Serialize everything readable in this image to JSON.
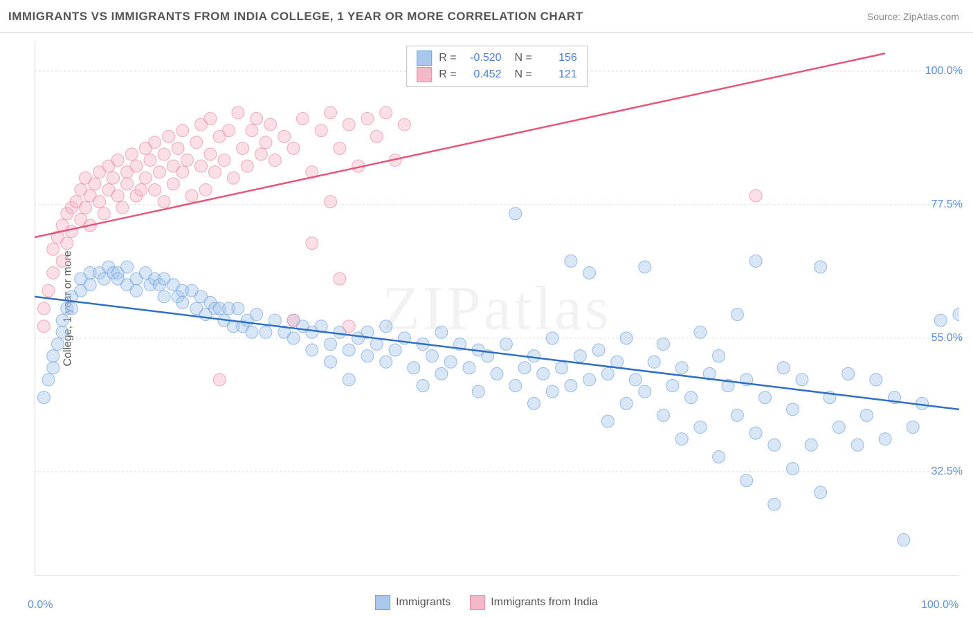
{
  "title": "IMMIGRANTS VS IMMIGRANTS FROM INDIA COLLEGE, 1 YEAR OR MORE CORRELATION CHART",
  "source": "Source: ZipAtlas.com",
  "watermark": "ZIPatlas",
  "y_axis_label": "College, 1 year or more",
  "chart": {
    "type": "scatter",
    "background_color": "#ffffff",
    "grid_color": "#dcdcdc",
    "axis_color": "#b0b0b0",
    "xlim": [
      0,
      100
    ],
    "ylim": [
      15,
      105
    ],
    "x_ticks": [
      0,
      10,
      20,
      30,
      40,
      50,
      60,
      70,
      80,
      90,
      100
    ],
    "x_tick_labels": {
      "0": "0.0%",
      "100": "100.0%"
    },
    "y_ticks": [
      32.5,
      55.0,
      77.5,
      100.0
    ],
    "y_tick_labels": [
      "32.5%",
      "55.0%",
      "77.5%",
      "100.0%"
    ],
    "marker_radius": 9,
    "marker_opacity": 0.45,
    "line_width": 2.5,
    "series": [
      {
        "name": "Immigrants",
        "color_fill": "#a9c8ec",
        "color_stroke": "#6fa3dd",
        "line_color": "#2f6fc4",
        "R": "-0.520",
        "N": "156",
        "trend": {
          "x1": 0,
          "y1": 62,
          "x2": 100,
          "y2": 43
        },
        "points": [
          [
            1,
            45
          ],
          [
            1.5,
            48
          ],
          [
            2,
            50
          ],
          [
            2,
            52
          ],
          [
            2.5,
            54
          ],
          [
            3,
            56
          ],
          [
            3,
            58
          ],
          [
            3.5,
            60
          ],
          [
            4,
            62
          ],
          [
            4,
            60
          ],
          [
            5,
            63
          ],
          [
            5,
            65
          ],
          [
            6,
            64
          ],
          [
            6,
            66
          ],
          [
            7,
            66
          ],
          [
            7.5,
            65
          ],
          [
            8,
            67
          ],
          [
            8.5,
            66
          ],
          [
            9,
            66
          ],
          [
            9,
            65
          ],
          [
            10,
            67
          ],
          [
            10,
            64
          ],
          [
            11,
            65
          ],
          [
            11,
            63
          ],
          [
            12,
            66
          ],
          [
            12.5,
            64
          ],
          [
            13,
            65
          ],
          [
            13.5,
            64
          ],
          [
            14,
            65
          ],
          [
            14,
            62
          ],
          [
            15,
            64
          ],
          [
            15.5,
            62
          ],
          [
            16,
            63
          ],
          [
            16,
            61
          ],
          [
            17,
            63
          ],
          [
            17.5,
            60
          ],
          [
            18,
            62
          ],
          [
            18.5,
            59
          ],
          [
            19,
            61
          ],
          [
            19.5,
            60
          ],
          [
            20,
            60
          ],
          [
            20.5,
            58
          ],
          [
            21,
            60
          ],
          [
            21.5,
            57
          ],
          [
            22,
            60
          ],
          [
            22.5,
            57
          ],
          [
            23,
            58
          ],
          [
            23.5,
            56
          ],
          [
            24,
            59
          ],
          [
            25,
            56
          ],
          [
            26,
            58
          ],
          [
            27,
            56
          ],
          [
            28,
            58
          ],
          [
            28,
            55
          ],
          [
            29,
            57
          ],
          [
            30,
            56
          ],
          [
            30,
            53
          ],
          [
            31,
            57
          ],
          [
            32,
            54
          ],
          [
            32,
            51
          ],
          [
            33,
            56
          ],
          [
            34,
            53
          ],
          [
            34,
            48
          ],
          [
            35,
            55
          ],
          [
            36,
            56
          ],
          [
            36,
            52
          ],
          [
            37,
            54
          ],
          [
            38,
            51
          ],
          [
            38,
            57
          ],
          [
            39,
            53
          ],
          [
            40,
            55
          ],
          [
            41,
            50
          ],
          [
            42,
            54
          ],
          [
            42,
            47
          ],
          [
            43,
            52
          ],
          [
            44,
            56
          ],
          [
            44,
            49
          ],
          [
            45,
            51
          ],
          [
            46,
            54
          ],
          [
            47,
            50
          ],
          [
            48,
            53
          ],
          [
            48,
            46
          ],
          [
            49,
            52
          ],
          [
            50,
            49
          ],
          [
            51,
            54
          ],
          [
            52,
            47
          ],
          [
            52,
            76
          ],
          [
            53,
            50
          ],
          [
            54,
            52
          ],
          [
            54,
            44
          ],
          [
            55,
            49
          ],
          [
            56,
            46
          ],
          [
            56,
            55
          ],
          [
            57,
            50
          ],
          [
            58,
            68
          ],
          [
            58,
            47
          ],
          [
            59,
            52
          ],
          [
            60,
            66
          ],
          [
            60,
            48
          ],
          [
            61,
            53
          ],
          [
            62,
            49
          ],
          [
            62,
            41
          ],
          [
            63,
            51
          ],
          [
            64,
            44
          ],
          [
            64,
            55
          ],
          [
            65,
            48
          ],
          [
            66,
            46
          ],
          [
            66,
            67
          ],
          [
            67,
            51
          ],
          [
            68,
            42
          ],
          [
            68,
            54
          ],
          [
            69,
            47
          ],
          [
            70,
            38
          ],
          [
            70,
            50
          ],
          [
            71,
            45
          ],
          [
            72,
            56
          ],
          [
            72,
            40
          ],
          [
            73,
            49
          ],
          [
            74,
            35
          ],
          [
            74,
            52
          ],
          [
            75,
            47
          ],
          [
            76,
            42
          ],
          [
            76,
            59
          ],
          [
            77,
            31
          ],
          [
            77,
            48
          ],
          [
            78,
            68
          ],
          [
            78,
            39
          ],
          [
            79,
            45
          ],
          [
            80,
            27
          ],
          [
            80,
            37
          ],
          [
            81,
            50
          ],
          [
            82,
            43
          ],
          [
            82,
            33
          ],
          [
            83,
            48
          ],
          [
            84,
            37
          ],
          [
            85,
            67
          ],
          [
            85,
            29
          ],
          [
            86,
            45
          ],
          [
            87,
            40
          ],
          [
            88,
            49
          ],
          [
            89,
            37
          ],
          [
            90,
            42
          ],
          [
            91,
            48
          ],
          [
            92,
            38
          ],
          [
            93,
            45
          ],
          [
            94,
            21
          ],
          [
            95,
            40
          ],
          [
            96,
            44
          ],
          [
            98,
            58
          ],
          [
            100,
            59
          ]
        ]
      },
      {
        "name": "Immigrants from India",
        "color_fill": "#f4b9c9",
        "color_stroke": "#e88aa3",
        "line_color": "#e4567a",
        "R": "0.452",
        "N": "121",
        "trend": {
          "x1": 0,
          "y1": 72,
          "x2": 92,
          "y2": 103
        },
        "points": [
          [
            1,
            57
          ],
          [
            1,
            60
          ],
          [
            1.5,
            63
          ],
          [
            2,
            66
          ],
          [
            2,
            70
          ],
          [
            2.5,
            72
          ],
          [
            3,
            68
          ],
          [
            3,
            74
          ],
          [
            3.5,
            76
          ],
          [
            3.5,
            71
          ],
          [
            4,
            73
          ],
          [
            4,
            77
          ],
          [
            4.5,
            78
          ],
          [
            5,
            75
          ],
          [
            5,
            80
          ],
          [
            5.5,
            82
          ],
          [
            5.5,
            77
          ],
          [
            6,
            74
          ],
          [
            6,
            79
          ],
          [
            6.5,
            81
          ],
          [
            7,
            83
          ],
          [
            7,
            78
          ],
          [
            7.5,
            76
          ],
          [
            8,
            80
          ],
          [
            8,
            84
          ],
          [
            8.5,
            82
          ],
          [
            9,
            85
          ],
          [
            9,
            79
          ],
          [
            9.5,
            77
          ],
          [
            10,
            83
          ],
          [
            10,
            81
          ],
          [
            10.5,
            86
          ],
          [
            11,
            79
          ],
          [
            11,
            84
          ],
          [
            11.5,
            80
          ],
          [
            12,
            87
          ],
          [
            12,
            82
          ],
          [
            12.5,
            85
          ],
          [
            13,
            88
          ],
          [
            13,
            80
          ],
          [
            13.5,
            83
          ],
          [
            14,
            86
          ],
          [
            14,
            78
          ],
          [
            14.5,
            89
          ],
          [
            15,
            84
          ],
          [
            15,
            81
          ],
          [
            15.5,
            87
          ],
          [
            16,
            83
          ],
          [
            16,
            90
          ],
          [
            16.5,
            85
          ],
          [
            17,
            79
          ],
          [
            17.5,
            88
          ],
          [
            18,
            84
          ],
          [
            18,
            91
          ],
          [
            18.5,
            80
          ],
          [
            19,
            86
          ],
          [
            19,
            92
          ],
          [
            19.5,
            83
          ],
          [
            20,
            89
          ],
          [
            20.5,
            85
          ],
          [
            21,
            90
          ],
          [
            21.5,
            82
          ],
          [
            22,
            93
          ],
          [
            22.5,
            87
          ],
          [
            23,
            84
          ],
          [
            23.5,
            90
          ],
          [
            24,
            92
          ],
          [
            24.5,
            86
          ],
          [
            25,
            88
          ],
          [
            25.5,
            91
          ],
          [
            26,
            85
          ],
          [
            27,
            89
          ],
          [
            28,
            87
          ],
          [
            29,
            92
          ],
          [
            30,
            83
          ],
          [
            31,
            90
          ],
          [
            32,
            93
          ],
          [
            32,
            78
          ],
          [
            33,
            87
          ],
          [
            34,
            91
          ],
          [
            35,
            84
          ],
          [
            36,
            92
          ],
          [
            37,
            89
          ],
          [
            38,
            93
          ],
          [
            39,
            85
          ],
          [
            40,
            91
          ],
          [
            20,
            48
          ],
          [
            28,
            58
          ],
          [
            30,
            71
          ],
          [
            33,
            65
          ],
          [
            34,
            57
          ],
          [
            78,
            79
          ]
        ]
      }
    ]
  },
  "legend_bottom": [
    {
      "label": "Immigrants",
      "fill": "#a9c8ec",
      "stroke": "#6fa3dd"
    },
    {
      "label": "Immigrants from India",
      "fill": "#f4b9c9",
      "stroke": "#e88aa3"
    }
  ]
}
